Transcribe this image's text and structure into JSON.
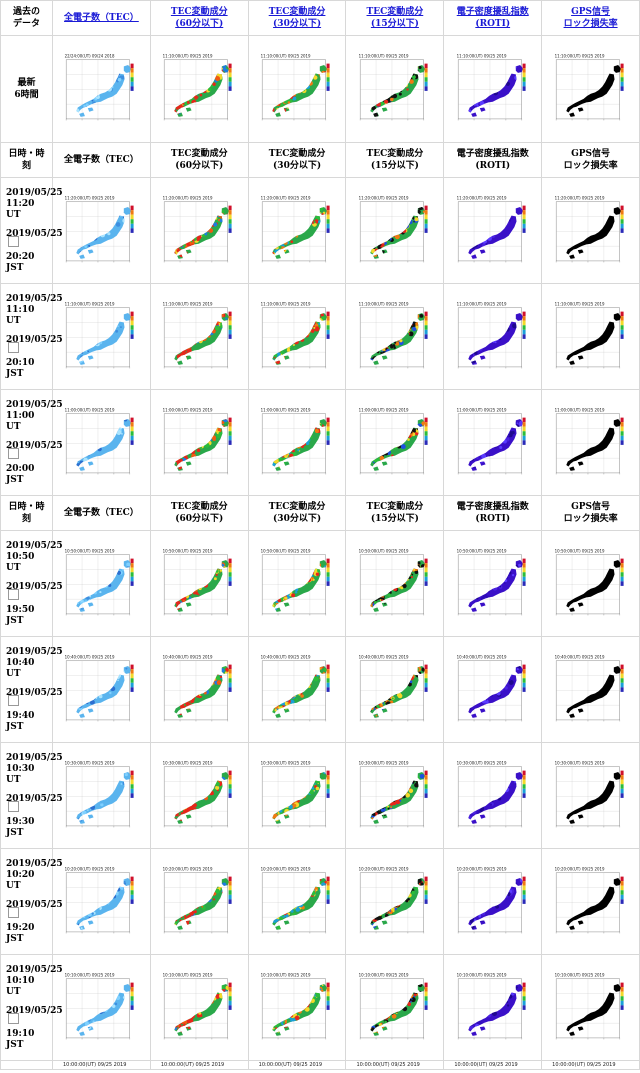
{
  "header_top": {
    "left": "過去の\nデータ",
    "cols": [
      {
        "label": "全電子数（TEC）",
        "link": true
      },
      {
        "label": "TEC変動成分\n(60分以下)",
        "link": true
      },
      {
        "label": "TEC変動成分\n(30分以下)",
        "link": true
      },
      {
        "label": "TEC変動成分\n(15分以下)",
        "link": true
      },
      {
        "label": "電子密度擾乱指数\n(ROTI)",
        "link": true
      },
      {
        "label": "GPS信号\nロック損失率",
        "link": true
      }
    ]
  },
  "latest_row": {
    "label": "最新\n6時間",
    "captions": [
      "22/24:00(UT) 09/24 2018",
      "11:10:00(UT) 09/25 2019",
      "11:10:00(UT) 09/25 2019",
      "11:10:00(UT) 09/25 2019",
      "11:10:00(UT) 09/25 2019",
      "11:10:00(UT) 09/25 2019"
    ]
  },
  "section_header": {
    "left": "日時・時\n刻",
    "cols": [
      "全電子数（TEC）",
      "TEC変動成分\n(60分以下)",
      "TEC変動成分\n(30分以下)",
      "TEC変動成分\n(15分以下)",
      "電子密度擾乱指数\n(ROTI)",
      "GPS信号\nロック損失率"
    ]
  },
  "group1": [
    {
      "ut": "2019/05/25\n11:20 UT",
      "jst": "2019/05/25\n20:20\nJST",
      "caption": "11:20:00(UT) 09/25 2019"
    },
    {
      "ut": "2019/05/25\n11:10 UT",
      "jst": "2019/05/25\n20:10\nJST",
      "caption": "11:10:00(UT) 09/25 2019"
    },
    {
      "ut": "2019/05/25\n11:00 UT",
      "jst": "2019/05/25\n20:00\nJST",
      "caption": "11:00:00(UT) 09/25 2019"
    }
  ],
  "group2": [
    {
      "ut": "2019/05/25\n10:50 UT",
      "jst": "2019/05/25\n19:50\nJST",
      "caption": "10:50:00(UT) 09/25 2019"
    },
    {
      "ut": "2019/05/25\n10:40 UT",
      "jst": "2019/05/25\n19:40\nJST",
      "caption": "10:40:00(UT) 09/25 2019"
    },
    {
      "ut": "2019/05/25\n10:30 UT",
      "jst": "2019/05/25\n19:30\nJST",
      "caption": "10:30:00(UT) 09/25 2019"
    },
    {
      "ut": "2019/05/25\n10:20 UT",
      "jst": "2019/05/25\n19:20\nJST",
      "caption": "10:20:00(UT) 09/25 2019"
    },
    {
      "ut": "2019/05/25\n10:10 UT",
      "jst": "2019/05/25\n19:10\nJST",
      "caption": "10:10:00(UT) 09/25 2019"
    }
  ],
  "trailing_caption": "10:00:00(UT) 09/25 2019",
  "colors": {
    "link": "#1a1ad6",
    "roti_base": "#3a10c8",
    "lock_base": "#000000"
  }
}
